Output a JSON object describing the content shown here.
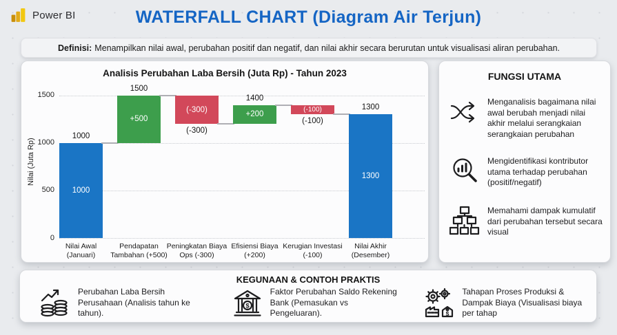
{
  "header": {
    "logo_text": "Power BI",
    "title": "WATERFALL CHART (Diagram Air Terjun)",
    "title_color": "#1565c4"
  },
  "definition": {
    "label": "Definisi:",
    "text": "Menampilkan nilai awal, perubahan positif dan negatif, dan nilai akhir secara berurutan untuk visualisasi aliran perubahan."
  },
  "chart_data": {
    "type": "bar",
    "variant": "waterfall",
    "title": "Analisis Perubahan Laba Bersih (Juta Rp) - Tahun 2023",
    "ylabel": "Nilai (Juta Rp)",
    "axis": {
      "ymax": 1600,
      "ticks": [
        0,
        500,
        1000,
        1500
      ],
      "grid": "dotted"
    },
    "colors": {
      "total": "#1a75c5",
      "increase": "#3d9e4c",
      "decrease": "#d2485a"
    },
    "bars": [
      {
        "line1": "Nilai Awal",
        "line2": "(Januari)",
        "start": 0,
        "end": 1000,
        "kind": "total",
        "inside": "1000",
        "outside": "1000",
        "outside_side": "above"
      },
      {
        "line1": "Pendapatan",
        "line2": "Tambahan (+500)",
        "start": 1000,
        "end": 1500,
        "kind": "increase",
        "inside": "+500",
        "outside": "1500",
        "outside_side": "above"
      },
      {
        "line1": "Peningkatan Biaya",
        "line2": "Ops (-300)",
        "start": 1500,
        "end": 1200,
        "kind": "decrease",
        "inside": "(-300)",
        "outside": "(-300)",
        "outside_side": "below"
      },
      {
        "line1": "Efisiensi Biaya",
        "line2": "(+200)",
        "start": 1200,
        "end": 1400,
        "kind": "increase",
        "inside": "+200",
        "outside": "1400",
        "outside_side": "above"
      },
      {
        "line1": "Kerugian Investasi",
        "line2": "(-100)",
        "start": 1400,
        "end": 1300,
        "kind": "decrease",
        "inside": "(-100)",
        "outside": "(-100)",
        "outside_side": "below"
      },
      {
        "line1": "Nilai Akhir",
        "line2": "(Desember)",
        "start": 0,
        "end": 1300,
        "kind": "total",
        "inside": "1300",
        "outside": "1300",
        "outside_side": "above"
      }
    ]
  },
  "fungsi_utama": {
    "title": "FUNGSI UTAMA",
    "items": [
      {
        "icon": "shuffle-arrows-icon",
        "text": "Menganalisis bagaimana nilai awal berubah menjadi nilai akhir melalui serangkaian serangkaian perubahan"
      },
      {
        "icon": "magnifier-chart-icon",
        "text": "Mengidentifikasi kontributor utama terhadap perubahan (positif/negatif)"
      },
      {
        "icon": "hierarchy-boxes-icon",
        "text": "Memahami dampak kumulatif dari perubahan tersebut secara visual"
      }
    ]
  },
  "kegunaan": {
    "title": "KEGUNAAN & CONTOH PRAKTIS",
    "items": [
      {
        "icon": "coins-growth-icon",
        "text": "Perubahan Laba Bersih Perusahaan (Analisis tahun ke tahun)."
      },
      {
        "icon": "bank-icon",
        "text": "Faktor Perubahan Saldo Rekening Bank (Pemasukan vs Pengeluaran)."
      },
      {
        "icon": "process-gears-icon",
        "text": "Tahapan Proses Produksi & Dampak Biaya (Visualisasi biaya per tahap"
      }
    ]
  }
}
